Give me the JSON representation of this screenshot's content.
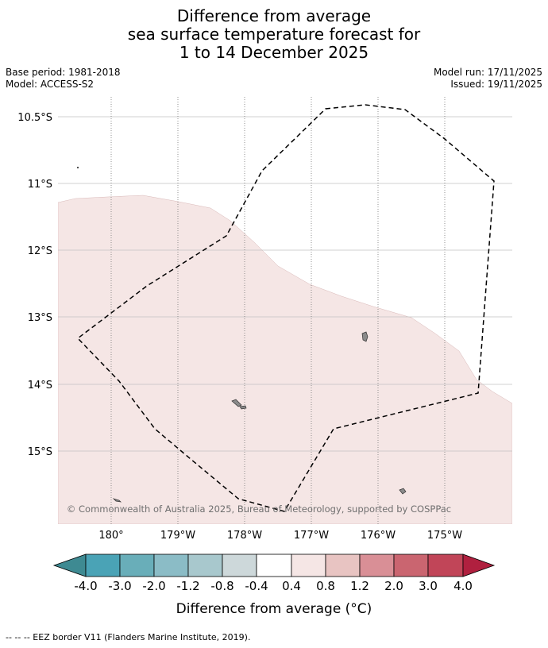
{
  "title": {
    "line1": "Difference from average",
    "line2": "sea surface temperature forecast for",
    "line3": "1 to 14 December 2025"
  },
  "meta": {
    "base_period": "Base period: 1981-2018",
    "model": "Model: ACCESS-S2",
    "model_run": "Model run: 17/11/2025",
    "issued": "Issued: 19/11/2025"
  },
  "map": {
    "lat_labels": [
      "10.5°S",
      "11°S",
      "12°S",
      "13°S",
      "14°S",
      "15°S"
    ],
    "lon_labels": [
      "180°",
      "179°W",
      "178°W",
      "177°W",
      "176°W",
      "175°W"
    ],
    "copyright": "© Commonwealth of Australia 2025, Bureau of Meteorology, supported by COSPPac",
    "colors": {
      "ocean_default": "#ffffff",
      "anomaly_fill": "#f5e6e5",
      "land": "#8a8a8a",
      "eez_line": "#000000"
    }
  },
  "colorbar": {
    "tick_labels": [
      "-4.0",
      "-3.0",
      "-2.0",
      "-1.2",
      "-0.8",
      "-0.4",
      "0.4",
      "0.8",
      "1.2",
      "2.0",
      "3.0",
      "4.0"
    ],
    "colors": [
      "#3e8a92",
      "#4aa3b6",
      "#69aeb9",
      "#8bbcc6",
      "#a8c8cd",
      "#cdd8da",
      "#ffffff",
      "#f5e6e5",
      "#e8c4c2",
      "#d98f96",
      "#ca6570",
      "#c14558",
      "#b0203f"
    ],
    "label": "Difference from average (°C)"
  },
  "footer": "--  --  -- EEZ border V11 (Flanders Marine Institute, 2019)."
}
